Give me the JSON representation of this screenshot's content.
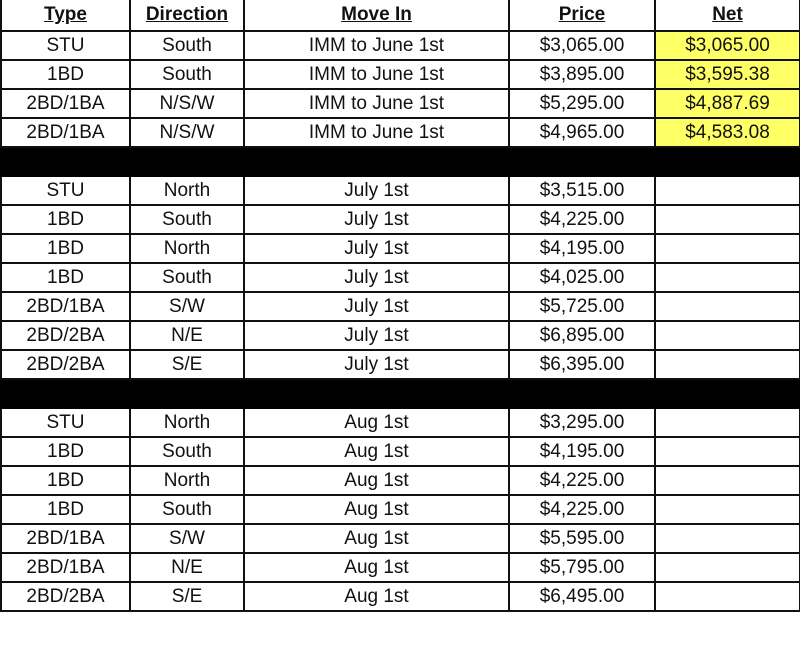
{
  "headers": {
    "type": "Type",
    "direction": "Direction",
    "move_in": "Move In",
    "price": "Price",
    "net": "Net"
  },
  "colors": {
    "net_highlight": "#ffff66",
    "separator": "#000000"
  },
  "groups": [
    {
      "rows": [
        {
          "type": "STU",
          "direction": "South",
          "move_in": "IMM to June 1st",
          "price": "$3,065.00",
          "net": "$3,065.00",
          "highlight": true
        },
        {
          "type": "1BD",
          "direction": "South",
          "move_in": "IMM to June 1st",
          "price": "$3,895.00",
          "net": "$3,595.38",
          "highlight": true
        },
        {
          "type": "2BD/1BA",
          "direction": "N/S/W",
          "move_in": "IMM to June 1st",
          "price": "$5,295.00",
          "net": "$4,887.69",
          "highlight": true
        },
        {
          "type": "2BD/1BA",
          "direction": "N/S/W",
          "move_in": "IMM to June 1st",
          "price": "$4,965.00",
          "net": "$4,583.08",
          "highlight": true
        }
      ]
    },
    {
      "rows": [
        {
          "type": "STU",
          "direction": "North",
          "move_in": "July 1st",
          "price": "$3,515.00",
          "net": ""
        },
        {
          "type": "1BD",
          "direction": "South",
          "move_in": "July 1st",
          "price": "$4,225.00",
          "net": ""
        },
        {
          "type": "1BD",
          "direction": "North",
          "move_in": "July 1st",
          "price": "$4,195.00",
          "net": ""
        },
        {
          "type": "1BD",
          "direction": "South",
          "move_in": "July 1st",
          "price": "$4,025.00",
          "net": ""
        },
        {
          "type": "2BD/1BA",
          "direction": "S/W",
          "move_in": "July 1st",
          "price": "$5,725.00",
          "net": ""
        },
        {
          "type": "2BD/2BA",
          "direction": "N/E",
          "move_in": "July 1st",
          "price": "$6,895.00",
          "net": ""
        },
        {
          "type": "2BD/2BA",
          "direction": "S/E",
          "move_in": "July 1st",
          "price": "$6,395.00",
          "net": ""
        }
      ]
    },
    {
      "rows": [
        {
          "type": "STU",
          "direction": "North",
          "move_in": "Aug 1st",
          "price": "$3,295.00",
          "net": ""
        },
        {
          "type": "1BD",
          "direction": "South",
          "move_in": "Aug 1st",
          "price": "$4,195.00",
          "net": ""
        },
        {
          "type": "1BD",
          "direction": "North",
          "move_in": "Aug 1st",
          "price": "$4,225.00",
          "net": ""
        },
        {
          "type": "1BD",
          "direction": "South",
          "move_in": "Aug 1st",
          "price": "$4,225.00",
          "net": ""
        },
        {
          "type": "2BD/1BA",
          "direction": "S/W",
          "move_in": "Aug 1st",
          "price": "$5,595.00",
          "net": ""
        },
        {
          "type": "2BD/1BA",
          "direction": "N/E",
          "move_in": "Aug 1st",
          "price": "$5,795.00",
          "net": ""
        },
        {
          "type": "2BD/2BA",
          "direction": "S/E",
          "move_in": "Aug 1st",
          "price": "$6,495.00",
          "net": ""
        }
      ]
    }
  ]
}
